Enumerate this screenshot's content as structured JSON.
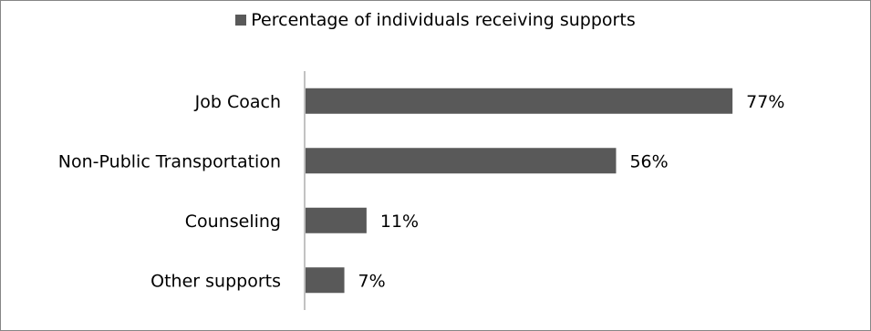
{
  "chart_data": {
    "type": "bar",
    "orientation": "horizontal",
    "categories": [
      "Job Coach",
      "Non-Public Transportation",
      "Counseling",
      "Other supports"
    ],
    "series": [
      {
        "name": "Percentage of individuals receiving supports",
        "values": [
          77,
          56,
          11,
          7
        ],
        "value_labels": [
          "77%",
          "56%",
          "11%",
          "7%"
        ],
        "color": "#595959"
      }
    ],
    "legend_position": "top",
    "grid": false,
    "xlim": [
      0,
      100
    ]
  }
}
